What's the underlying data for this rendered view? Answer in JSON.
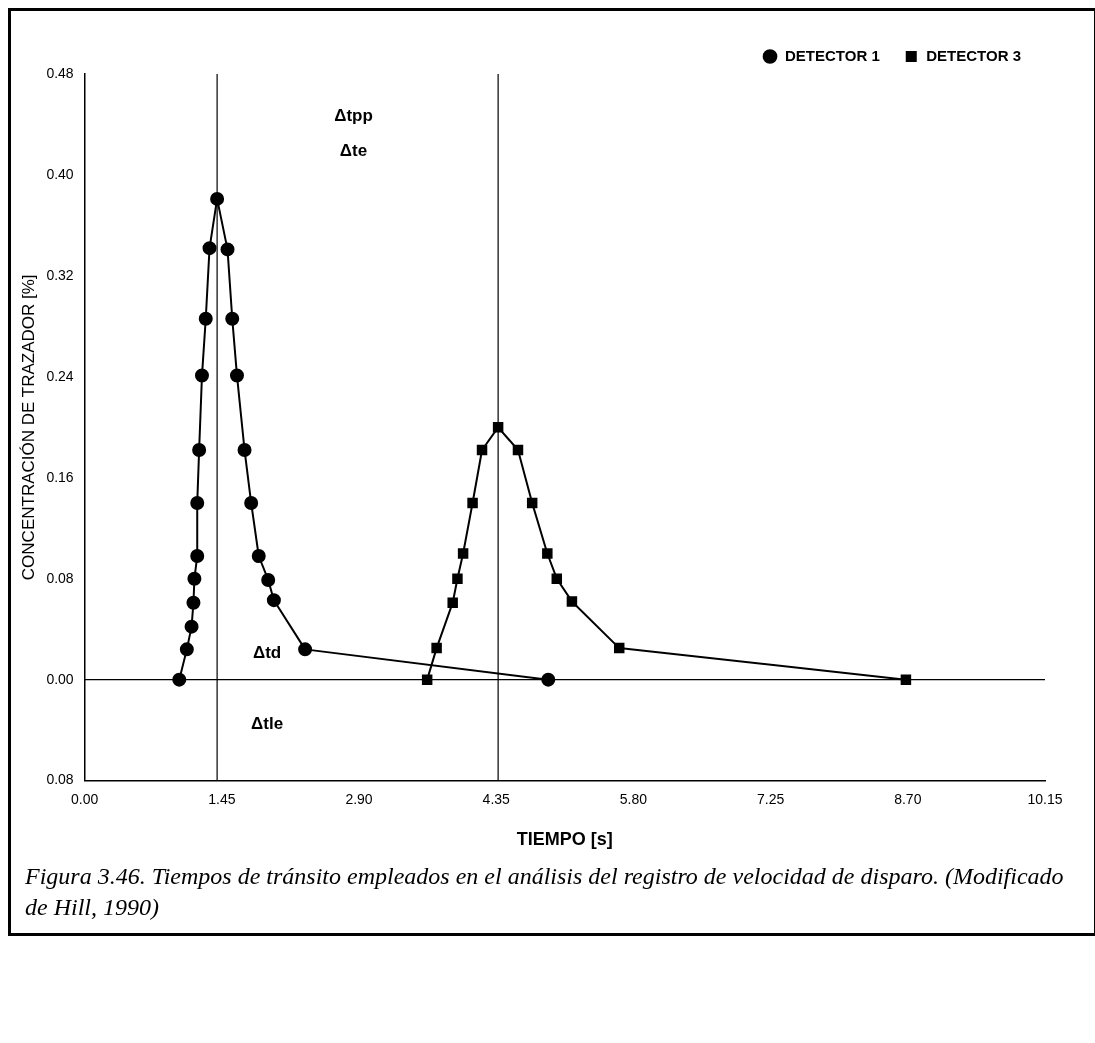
{
  "chart_data": {
    "type": "line",
    "xlabel": "TIEMPO [s]",
    "ylabel": "CONCENTRACIÓN DE TRAZADOR [%]",
    "xlim": [
      0,
      10.15
    ],
    "xticks": [
      {
        "value": 0,
        "label": "0.00"
      },
      1.45,
      {
        "value": 2.9,
        "label": "2.90"
      },
      4.35,
      {
        "value": 5.8,
        "label": "5.80"
      },
      7.25,
      {
        "value": 8.7,
        "label": "8.70"
      },
      10.15
    ],
    "ylim": [
      -0.08,
      0.48
    ],
    "yticks": [
      {
        "value": -0.08,
        "label": "0.08"
      },
      {
        "value": 0,
        "label": "0.00"
      },
      0.08,
      0.16,
      0.24,
      0.32,
      {
        "value": 0.4,
        "label": "0.40"
      },
      0.48
    ],
    "grid": false,
    "legend": "top right",
    "line_style": "solid",
    "series": [
      {
        "name": "DETECTOR 1",
        "color": "#000000",
        "marker": "circle",
        "x": [
          1.0,
          1.08,
          1.13,
          1.15,
          1.16,
          1.19,
          1.19,
          1.21,
          1.24,
          1.28,
          1.32,
          1.4,
          1.51,
          1.56,
          1.61,
          1.69,
          1.76,
          1.84,
          1.94,
          2.0,
          2.33,
          4.9
        ],
        "values": [
          0,
          0.024,
          0.042,
          0.061,
          0.08,
          0.098,
          0.14,
          0.182,
          0.241,
          0.286,
          0.342,
          0.381,
          0.341,
          0.286,
          0.241,
          0.182,
          0.14,
          0.098,
          0.079,
          0.063,
          0.024,
          0
        ]
      },
      {
        "name": "DETECTOR 3",
        "color": "#000000",
        "marker": "square",
        "x": [
          3.62,
          3.72,
          3.89,
          3.94,
          4.0,
          4.1,
          4.2,
          4.37,
          4.58,
          4.73,
          4.89,
          4.99,
          5.15,
          5.65,
          8.68
        ],
        "values": [
          0,
          0.025,
          0.061,
          0.08,
          0.1,
          0.14,
          0.182,
          0.2,
          0.182,
          0.14,
          0.1,
          0.08,
          0.062,
          0.025,
          0
        ]
      }
    ],
    "ref_lines": [
      {
        "axis": "y",
        "value": 0,
        "color": "#000000"
      },
      {
        "axis": "x",
        "value": 1.4,
        "color": "#000000"
      },
      {
        "axis": "x",
        "value": 4.37,
        "color": "#000000"
      }
    ],
    "annotations": [
      "Δtpp",
      "Δte",
      "Δtd",
      "Δtle",
      "Figura 3.46.  Tiempos de tránsito empleados en el análisis del registro de velocidad de disparo. (Modificado de Hill, 1990)"
    ]
  }
}
